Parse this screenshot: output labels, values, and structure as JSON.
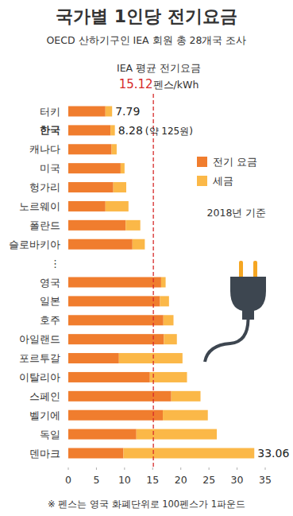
{
  "chart_data": {
    "type": "bar",
    "orientation": "horizontal",
    "stacked": true,
    "grid": false,
    "legend": "right",
    "title": "국가별 1인당 전기요금",
    "subtitle": "OECD 산하기구인 IEA 회원 총 28개국 조사",
    "date_note": "2018년 기준",
    "footnote": "※ 펜스는 영국 화폐단위로 100펜스가 1파운드",
    "categories": [
      "터키",
      "한국",
      "캐나다",
      "미국",
      "헝가리",
      "노르웨이",
      "폴란드",
      "슬로바키아",
      "⋮",
      "영국",
      "일본",
      "호주",
      "아일랜드",
      "포르투갈",
      "이탈리아",
      "스페인",
      "벨기에",
      "독일",
      "덴마크"
    ],
    "series": [
      {
        "name": "전기 요금",
        "color": "#f07d2e",
        "values": [
          6.6,
          7.5,
          7.7,
          9.3,
          8.0,
          6.6,
          10.2,
          11.4,
          null,
          16.5,
          16.3,
          16.9,
          17.0,
          9.0,
          14.5,
          18.3,
          16.8,
          12.1,
          9.8
        ]
      },
      {
        "name": "세금",
        "color": "#fbb848",
        "values": [
          1.19,
          0.78,
          0.9,
          0.7,
          2.3,
          4.1,
          2.6,
          2.2,
          null,
          0.8,
          1.6,
          1.8,
          2.3,
          11.3,
          6.6,
          5.2,
          8.0,
          14.3,
          23.26
        ]
      }
    ],
    "annotations": [
      {
        "category": "터키",
        "value": 7.79,
        "text": "7.79"
      },
      {
        "category": "한국",
        "value": 8.28,
        "text": "8.28",
        "note": "(약 125원)"
      },
      {
        "category": "덴마크",
        "value": 33.06,
        "text": "33.06"
      }
    ],
    "average": {
      "label": "IEA 평균 전기요금",
      "value": 15.12,
      "value_label": "15.12",
      "unit": "펜스/kWh",
      "color": "#d62a2a"
    },
    "xlim": [
      0,
      35
    ],
    "xticks": [
      0,
      5,
      10,
      15,
      20,
      25,
      30,
      35
    ]
  }
}
